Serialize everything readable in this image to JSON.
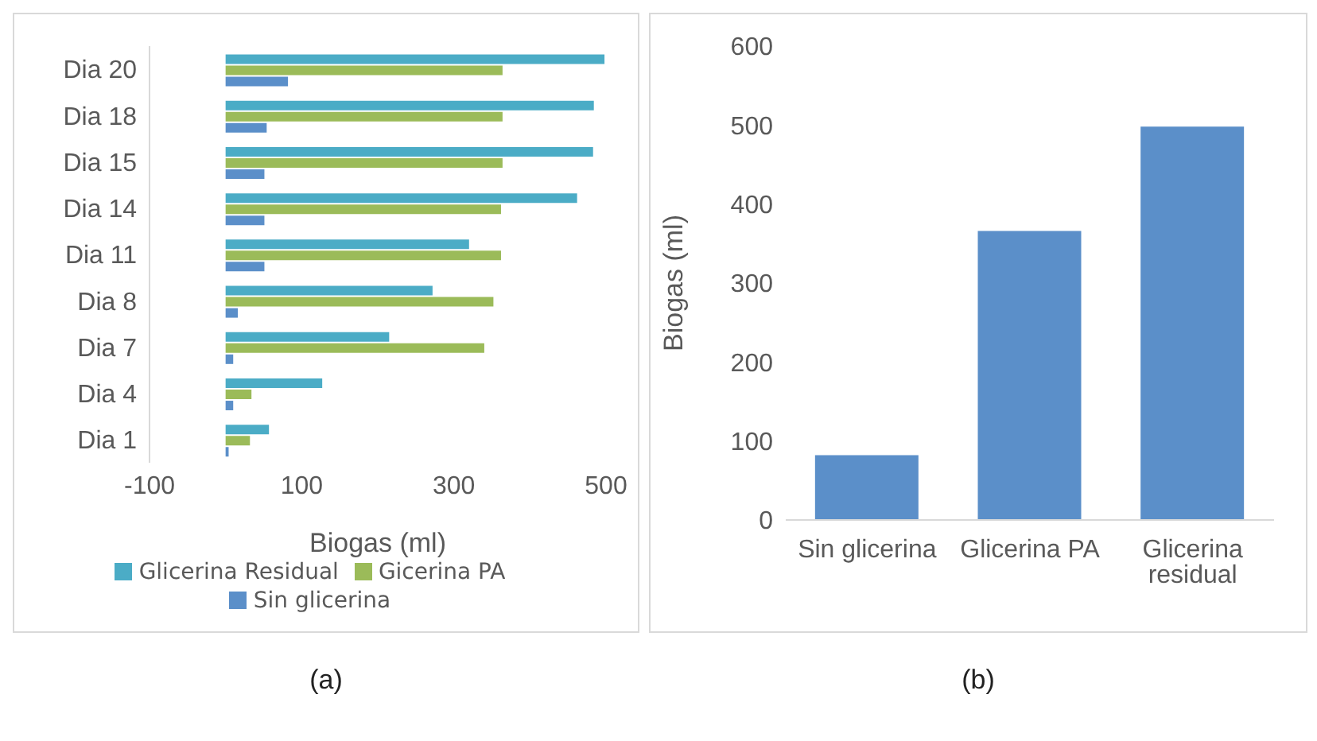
{
  "chart_data": [
    {
      "type": "bar",
      "orientation": "horizontal",
      "categories": [
        "Dia 20",
        "Dia 18",
        "Dia 15",
        "Dia 14",
        "Dia 11",
        "Dia 8",
        "Dia 7",
        "Dia 4",
        "Dia 1"
      ],
      "series": [
        {
          "name": "Glicerina Residual",
          "color": "#4bacc6",
          "values": [
            498,
            484,
            483,
            462,
            320,
            272,
            215,
            127,
            57
          ]
        },
        {
          "name": "Gicerina PA",
          "color": "#9bbb59",
          "values": [
            364,
            364,
            364,
            362,
            362,
            352,
            340,
            34,
            32
          ]
        },
        {
          "name": "Sin glicerina",
          "color": "#5b8fc9",
          "values": [
            82,
            54,
            51,
            51,
            51,
            16,
            10,
            10,
            4
          ]
        }
      ],
      "xlim": [
        -100,
        500
      ],
      "xticks": [
        -100,
        100,
        300,
        500
      ],
      "xlabel": "Biogas (ml)",
      "legend": "bottom",
      "annotations": [
        "(a)"
      ]
    },
    {
      "type": "bar",
      "categories": [
        "Sin glicerina",
        "Glicerina PA",
        "Glicerina residual"
      ],
      "values": [
        82,
        366,
        498
      ],
      "color": "#5b8fc9",
      "ylim": [
        0,
        600
      ],
      "yticks": [
        0,
        100,
        200,
        300,
        400,
        500,
        600
      ],
      "ylabel": "Biogas (ml)",
      "annotations": [
        "(b)"
      ]
    }
  ]
}
